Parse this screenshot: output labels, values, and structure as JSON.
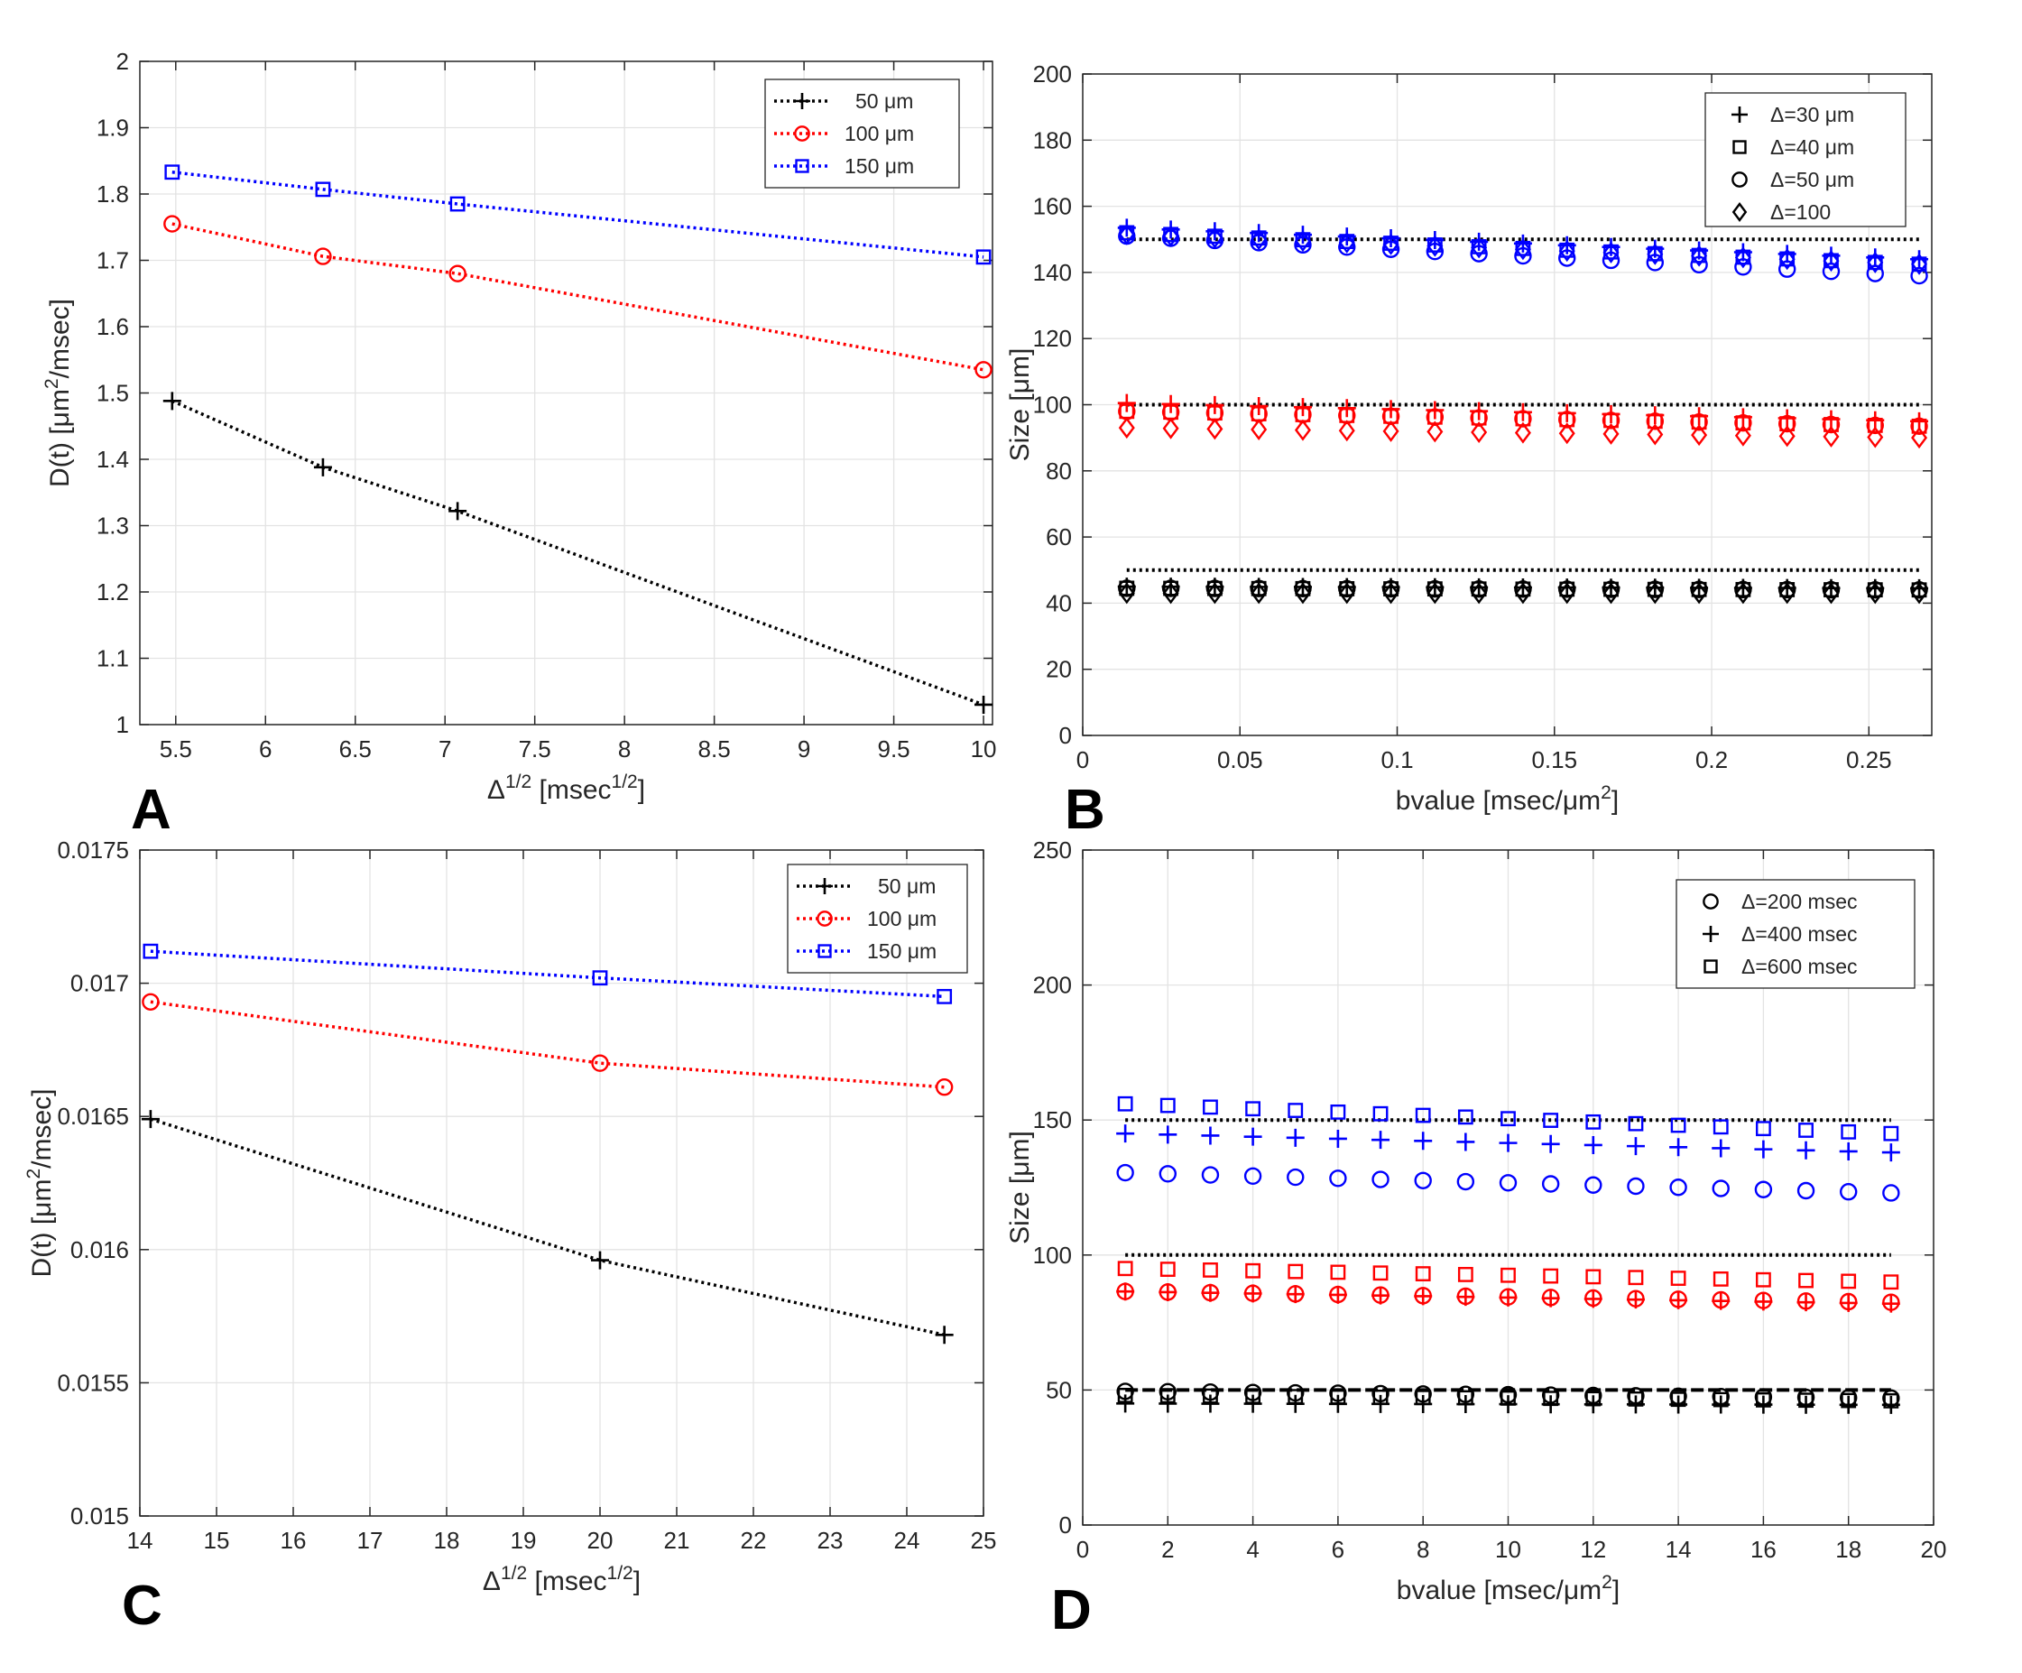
{
  "chart_data": [
    {
      "panel": "A",
      "type": "line",
      "title": "",
      "xlabel": "Δ^1/2 [msec^1/2]",
      "xlabel_parts": [
        "Δ",
        "1/2",
        " [msec",
        "1/2",
        "]"
      ],
      "ylabel": "D(t) [μm^2/msec]",
      "ylabel_parts": [
        "D(t) [",
        "μ",
        "m",
        "2",
        "/msec]"
      ],
      "xlim": [
        5.3,
        10.05
      ],
      "ylim": [
        1,
        2
      ],
      "xticks": [
        5.5,
        6,
        6.5,
        7,
        7.5,
        8,
        8.5,
        9,
        9.5,
        10
      ],
      "xtick_labels": [
        "5.5",
        "6",
        "6.5",
        "7",
        "7.5",
        "8",
        "8.5",
        "9",
        "9.5",
        "10"
      ],
      "yticks": [
        1,
        1.1,
        1.2,
        1.3,
        1.4,
        1.5,
        1.6,
        1.7,
        1.8,
        1.9,
        2
      ],
      "ytick_labels": [
        "1",
        "1.1",
        "1.2",
        "1.3",
        "1.4",
        "1.5",
        "1.6",
        "1.7",
        "1.8",
        "1.9",
        "2"
      ],
      "grid": true,
      "legend_position": "top-right",
      "series": [
        {
          "name": "50 μm",
          "label_num": "50",
          "label_unit": "μm",
          "color": "#000000",
          "marker": "plus",
          "line": "dotted",
          "x": [
            5.48,
            6.32,
            7.07,
            10
          ],
          "y": [
            1.488,
            1.388,
            1.322,
            1.03
          ]
        },
        {
          "name": "100 μm",
          "label_num": "100",
          "label_unit": "μm",
          "color": "#ff0000",
          "marker": "circle",
          "line": "dotted",
          "x": [
            5.48,
            6.32,
            7.07,
            10
          ],
          "y": [
            1.755,
            1.706,
            1.68,
            1.535
          ]
        },
        {
          "name": "150 μm",
          "label_num": "150",
          "label_unit": "μm",
          "color": "#0000ff",
          "marker": "square",
          "line": "dotted",
          "x": [
            5.48,
            6.32,
            7.07,
            10
          ],
          "y": [
            1.833,
            1.807,
            1.785,
            1.705
          ]
        }
      ]
    },
    {
      "panel": "B",
      "type": "scatter",
      "title": "",
      "xlabel": "bvalue [msec/μm^2]",
      "xlabel_parts": [
        "bvalue [msec/",
        "μ",
        "m",
        "2",
        "]"
      ],
      "ylabel": "Size [μm]",
      "ylabel_parts": [
        "Size [",
        "μ",
        "m]"
      ],
      "xlim": [
        0,
        0.27
      ],
      "ylim": [
        0,
        200
      ],
      "xticks": [
        0,
        0.05,
        0.1,
        0.15,
        0.2,
        0.25
      ],
      "xtick_labels": [
        "0",
        "0.05",
        "0.1",
        "0.15",
        "0.2",
        "0.25"
      ],
      "yticks": [
        0,
        20,
        40,
        60,
        80,
        100,
        120,
        140,
        160,
        180,
        200
      ],
      "ytick_labels": [
        "0",
        "20",
        "40",
        "60",
        "80",
        "100",
        "120",
        "140",
        "160",
        "180",
        "200"
      ],
      "grid": true,
      "legend_position": "top-right",
      "x": [
        0.014,
        0.028,
        0.042,
        0.056,
        0.07,
        0.084,
        0.098,
        0.112,
        0.126,
        0.14,
        0.154,
        0.168,
        0.182,
        0.196,
        0.21,
        0.224,
        0.238,
        0.252,
        0.266
      ],
      "reference_lines": [
        {
          "y": 150,
          "x_range": [
            0.014,
            0.266
          ],
          "color": "#000000",
          "style": "dotted"
        },
        {
          "y": 100,
          "x_range": [
            0.014,
            0.266
          ],
          "color": "#000000",
          "style": "dotted"
        },
        {
          "y": 50,
          "x_range": [
            0.014,
            0.266
          ],
          "color": "#000000",
          "style": "dotted"
        }
      ],
      "legend": [
        {
          "marker": "plus",
          "label": "Δ=30 ",
          "unit": "μm"
        },
        {
          "marker": "square",
          "label": "Δ=40 ",
          "unit": "μm"
        },
        {
          "marker": "circle",
          "label": "Δ=50 ",
          "unit": "μm"
        },
        {
          "marker": "diamond",
          "label": "Δ=100",
          "unit": ""
        }
      ],
      "series": [
        {
          "legend_index": 0,
          "marker": "plus",
          "color": "#0000ff",
          "y_start": 153.5,
          "y_end": 144
        },
        {
          "legend_index": 1,
          "marker": "square",
          "color": "#0000ff",
          "y_start": 152,
          "y_end": 142.5
        },
        {
          "legend_index": 2,
          "marker": "circle",
          "color": "#0000ff",
          "y_start": 151,
          "y_end": 139
        },
        {
          "legend_index": 3,
          "marker": "diamond",
          "color": "#0000ff",
          "y_start": 151.5,
          "y_end": 142.5
        },
        {
          "legend_index": 0,
          "marker": "plus",
          "color": "#ff0000",
          "y_start": 100.5,
          "y_end": 95
        },
        {
          "legend_index": 1,
          "marker": "square",
          "color": "#ff0000",
          "y_start": 98,
          "y_end": 93.5
        },
        {
          "legend_index": 2,
          "marker": "circle",
          "color": "#ff0000",
          "y_start": 98,
          "y_end": 93.5
        },
        {
          "legend_index": 3,
          "marker": "diamond",
          "color": "#ff0000",
          "y_start": 93,
          "y_end": 90
        },
        {
          "legend_index": 0,
          "marker": "plus",
          "color": "#000000",
          "y_start": 45,
          "y_end": 44.5
        },
        {
          "legend_index": 1,
          "marker": "square",
          "color": "#000000",
          "y_start": 44.5,
          "y_end": 44
        },
        {
          "legend_index": 2,
          "marker": "circle",
          "color": "#000000",
          "y_start": 44.5,
          "y_end": 44
        },
        {
          "legend_index": 3,
          "marker": "diamond",
          "color": "#000000",
          "y_start": 43,
          "y_end": 43
        }
      ]
    },
    {
      "panel": "C",
      "type": "line",
      "title": "",
      "xlabel": "Δ^1/2 [msec^1/2]",
      "xlabel_parts": [
        "Δ",
        "1/2",
        " [msec",
        "1/2",
        "]"
      ],
      "ylabel": "D(t) [μm^2/msec]",
      "ylabel_parts": [
        "D(t) [",
        "μ",
        "m",
        "2",
        "/msec]"
      ],
      "xlim": [
        14,
        25
      ],
      "ylim": [
        0.015,
        0.0175
      ],
      "xticks": [
        14,
        15,
        16,
        17,
        18,
        19,
        20,
        21,
        22,
        23,
        24,
        25
      ],
      "xtick_labels": [
        "14",
        "15",
        "16",
        "17",
        "18",
        "19",
        "20",
        "21",
        "22",
        "23",
        "24",
        "25"
      ],
      "yticks": [
        0.015,
        0.0155,
        0.016,
        0.0165,
        0.017,
        0.0175
      ],
      "ytick_labels": [
        "0.015",
        "0.0155",
        "0.016",
        "0.0165",
        "0.017",
        "0.0175"
      ],
      "grid": true,
      "legend_position": "top-right",
      "series": [
        {
          "name": "50 μm",
          "label_num": "50",
          "label_unit": "μm",
          "color": "#000000",
          "marker": "plus",
          "line": "dotted",
          "x": [
            14.14,
            20,
            24.49
          ],
          "y": [
            0.01649,
            0.01596,
            0.01568
          ]
        },
        {
          "name": "100 μm",
          "label_num": "100",
          "label_unit": "μm",
          "color": "#ff0000",
          "marker": "circle",
          "line": "dotted",
          "x": [
            14.14,
            20,
            24.49
          ],
          "y": [
            0.01693,
            0.0167,
            0.01661
          ]
        },
        {
          "name": "150 μm",
          "label_num": "150",
          "label_unit": "μm",
          "color": "#0000ff",
          "marker": "square",
          "line": "dotted",
          "x": [
            14.14,
            20,
            24.49
          ],
          "y": [
            0.01712,
            0.01702,
            0.01695
          ]
        }
      ]
    },
    {
      "panel": "D",
      "type": "scatter",
      "title": "",
      "xlabel": "bvalue [msec/μm^2]",
      "xlabel_parts": [
        "bvalue [msec/",
        "μ",
        "m",
        "2",
        "]"
      ],
      "ylabel": "Size [μm]",
      "ylabel_parts": [
        "Size [",
        "μ",
        "m]"
      ],
      "xlim": [
        0,
        20
      ],
      "ylim": [
        0,
        250
      ],
      "xticks": [
        0,
        2,
        4,
        6,
        8,
        10,
        12,
        14,
        16,
        18,
        20
      ],
      "xtick_labels": [
        "0",
        "2",
        "4",
        "6",
        "8",
        "10",
        "12",
        "14",
        "16",
        "18",
        "20"
      ],
      "yticks": [
        0,
        50,
        100,
        150,
        200,
        250
      ],
      "ytick_labels": [
        "0",
        "50",
        "100",
        "150",
        "200",
        "250"
      ],
      "grid": true,
      "legend_position": "top-right",
      "x": [
        1,
        2,
        3,
        4,
        5,
        6,
        7,
        8,
        9,
        10,
        11,
        12,
        13,
        14,
        15,
        16,
        17,
        18,
        19
      ],
      "reference_lines": [
        {
          "y": 150,
          "x_range": [
            1,
            19
          ],
          "color": "#000000",
          "style": "dotted"
        },
        {
          "y": 100,
          "x_range": [
            1,
            19
          ],
          "color": "#000000",
          "style": "dotted"
        },
        {
          "y": 50,
          "x_range": [
            1,
            19
          ],
          "color": "#000000",
          "style": "dashed"
        }
      ],
      "legend": [
        {
          "marker": "circle",
          "label": "Δ=200 msec",
          "unit": ""
        },
        {
          "marker": "plus",
          "label": "Δ=400 msec",
          "unit": ""
        },
        {
          "marker": "square",
          "label": "Δ=600 msec",
          "unit": ""
        }
      ],
      "series": [
        {
          "legend_index": 2,
          "marker": "square",
          "color": "#0000ff",
          "y_start": 156,
          "y_end": 145
        },
        {
          "legend_index": 1,
          "marker": "plus",
          "color": "#0000ff",
          "y_start": 145,
          "y_end": 138
        },
        {
          "legend_index": 0,
          "marker": "circle",
          "color": "#0000ff",
          "y_start": 130.5,
          "y_end": 123
        },
        {
          "legend_index": 2,
          "marker": "square",
          "color": "#ff0000",
          "y_start": 95,
          "y_end": 90
        },
        {
          "legend_index": 1,
          "marker": "plus",
          "color": "#ff0000",
          "y_start": 86.5,
          "y_end": 82
        },
        {
          "legend_index": 0,
          "marker": "circle",
          "color": "#ff0000",
          "y_start": 86.5,
          "y_end": 82.5
        },
        {
          "legend_index": 0,
          "marker": "circle",
          "color": "#000000",
          "y_start": 49.5,
          "y_end": 47
        },
        {
          "legend_index": 2,
          "marker": "square",
          "color": "#000000",
          "y_start": 48,
          "y_end": 46
        },
        {
          "legend_index": 1,
          "marker": "plus",
          "color": "#000000",
          "y_start": 45,
          "y_end": 44.5
        }
      ]
    }
  ]
}
